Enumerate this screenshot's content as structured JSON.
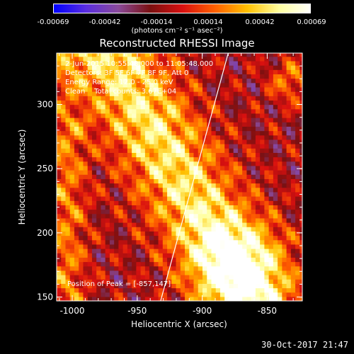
{
  "colors": {
    "colormap": [
      "#0000ff",
      "#5a2de0",
      "#8a4a9a",
      "#7a1010",
      "#d81010",
      "#ff6000",
      "#ffc000",
      "#ffffa0",
      "#ffffff"
    ],
    "background": "#000000",
    "foreground": "#ffffff"
  },
  "colorbar": {
    "ticks": [
      "-0.00069",
      "-0.00042",
      "-0.00014",
      "0.00014",
      "0.00042",
      "0.00069"
    ],
    "unit": "(photons cm⁻² s⁻¹ asec⁻²)",
    "range": [
      -0.00069,
      0.00069
    ]
  },
  "chart_data": {
    "type": "heatmap",
    "title": "Reconstructed RHESSI Image",
    "xlabel": "Heliocentric X (arcsec)",
    "ylabel": "Heliocentric Y (arcsec)",
    "xlim": [
      -1012,
      -823
    ],
    "ylim": [
      147,
      340
    ],
    "x_ticks": [
      -1000,
      -950,
      -900,
      -850
    ],
    "y_ticks": [
      150,
      200,
      250,
      300
    ],
    "x_tick_labels": [
      "-1000",
      "-950",
      "-900",
      "-850"
    ],
    "y_tick_labels": [
      "150",
      "200",
      "250",
      "300"
    ],
    "limb_line": [
      [
        -932,
        147
      ],
      [
        -880,
        340
      ]
    ],
    "peak": [
      -857,
      147
    ],
    "annotations": {
      "time_range": "2-Jun-2015 10:55:48.000 to 11:05:48.000",
      "detectors": "Detectors: 3F 5F 6F 7F 8F 9F, Att 0",
      "energy": "Energy Range: 12.0 - 25.0 keV",
      "clean": "Clean    Total counts: 3.67E+04",
      "peak_text": "Position of Peak = [-857,147]"
    }
  },
  "timestamp": "30-Oct-2017 21:47"
}
